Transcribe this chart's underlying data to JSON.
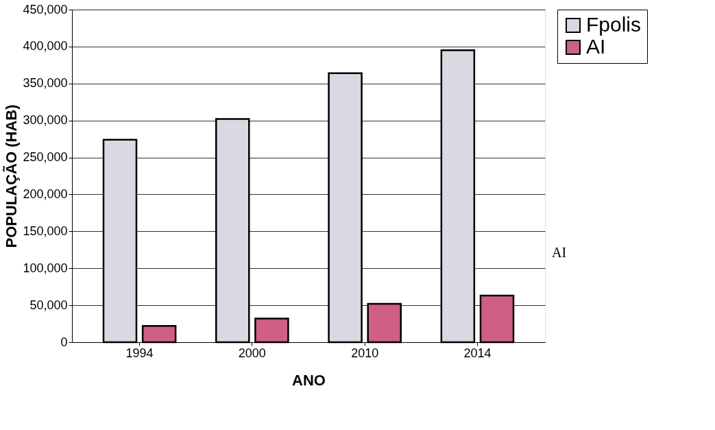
{
  "chart_data": {
    "type": "bar",
    "xlabel": "ANO",
    "ylabel": "POPULAÇÃO (HAB)",
    "categories": [
      "1994",
      "2000",
      "2010",
      "2014"
    ],
    "series": [
      {
        "name": "Fpolis",
        "color": "#d9d9e2",
        "values": [
          274000,
          302000,
          364000,
          395000
        ]
      },
      {
        "name": "AI",
        "color": "#cf5f84",
        "values": [
          22000,
          32000,
          52000,
          63000
        ]
      }
    ],
    "ylim": [
      0,
      450000
    ],
    "yticks": [
      {
        "value": 0,
        "label": "0"
      },
      {
        "value": 50000,
        "label": "50,000"
      },
      {
        "value": 100000,
        "label": "100,000"
      },
      {
        "value": 150000,
        "label": "150,000"
      },
      {
        "value": 200000,
        "label": "200,000"
      },
      {
        "value": 250000,
        "label": "250,000"
      },
      {
        "value": 300000,
        "label": "300,000"
      },
      {
        "value": 350000,
        "label": "350,000"
      },
      {
        "value": 400000,
        "label": "400,000"
      },
      {
        "value": 450000,
        "label": "450,000"
      }
    ],
    "grid": "y",
    "legend": "right",
    "annotations": [
      "AI"
    ]
  }
}
